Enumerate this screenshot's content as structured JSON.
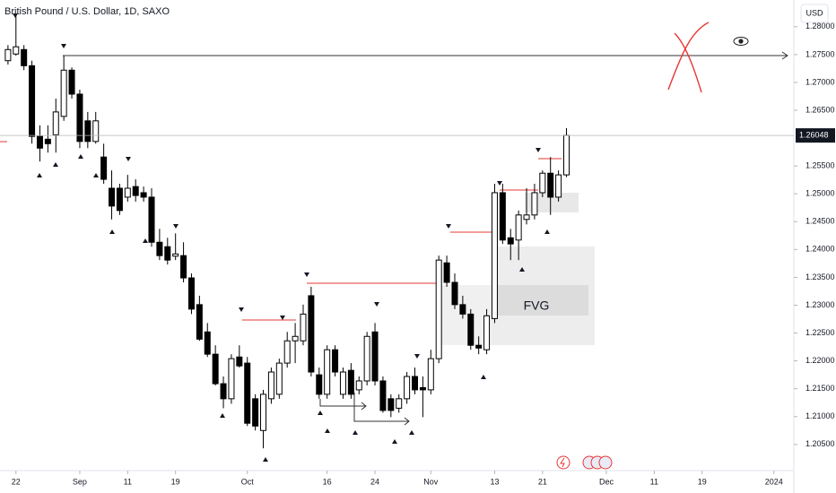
{
  "chart_data": {
    "type": "candlestick",
    "title": "British Pound / U.S. Dollar, 1D, SAXO",
    "currency": "USD",
    "annotation": "FVG",
    "up_color": "#ffffff",
    "down_color": "#000000",
    "open": [
      1.2739,
      1.2751,
      1.2759,
      1.273,
      1.2603,
      1.2598,
      1.2606,
      1.2639,
      1.2722,
      1.2679,
      1.2631,
      1.2594,
      1.2566,
      1.251,
      1.251,
      1.2494,
      1.2513,
      1.2502,
      1.2494,
      1.2413,
      1.2405,
      1.2388,
      1.2389,
      1.2349,
      1.2301,
      1.2252,
      1.2212,
      1.2159,
      1.2132,
      1.2207,
      1.2196,
      1.2132,
      1.2075,
      1.2132,
      1.214,
      1.2196,
      1.2236,
      1.2236,
      1.2317,
      1.2175,
      1.214,
      1.222,
      1.214,
      1.2183,
      1.2148,
      1.2164,
      1.2252,
      1.2164,
      1.2132,
      1.2115,
      1.2132,
      1.2172,
      1.2152,
      1.2148,
      1.2204,
      1.2376,
      1.2341,
      1.2301,
      1.2284,
      1.2228,
      1.222,
      1.2276,
      1.2502,
      1.2421,
      1.2417,
      1.2454,
      1.2462,
      1.2502,
      1.2537,
      1.2494,
      1.2534
    ],
    "high": [
      1.2767,
      1.2824,
      1.2767,
      1.2739,
      1.2623,
      1.2623,
      1.2671,
      1.2748,
      1.2727,
      1.2687,
      1.2647,
      1.2647,
      1.259,
      1.2542,
      1.2518,
      1.2534,
      1.2526,
      1.2513,
      1.251,
      1.2437,
      1.2421,
      1.2429,
      1.2413,
      1.2357,
      1.2317,
      1.2268,
      1.2228,
      1.2172,
      1.2212,
      1.2228,
      1.2207,
      1.214,
      1.2148,
      1.2188,
      1.2204,
      1.2252,
      1.2268,
      1.2301,
      1.2333,
      1.2188,
      1.2228,
      1.2228,
      1.2188,
      1.2196,
      1.2172,
      1.2252,
      1.2268,
      1.2172,
      1.214,
      1.214,
      1.218,
      1.2188,
      1.2172,
      1.222,
      1.2389,
      1.2389,
      1.2357,
      1.2317,
      1.2293,
      1.2244,
      1.2293,
      1.2518,
      1.2518,
      1.2437,
      1.247,
      1.251,
      1.2518,
      1.2542,
      1.2566,
      1.2542,
      1.2618
    ],
    "low": [
      1.2732,
      1.2748,
      1.2722,
      1.259,
      1.2558,
      1.2574,
      1.2574,
      1.2631,
      1.2671,
      1.2582,
      1.2582,
      1.259,
      1.2518,
      1.2454,
      1.2462,
      1.2486,
      1.2486,
      1.2486,
      1.2405,
      1.2381,
      1.2373,
      1.2381,
      1.2341,
      1.2284,
      1.2236,
      1.2207,
      1.2156,
      1.2115,
      1.2123,
      1.2188,
      1.2083,
      1.2075,
      1.2043,
      1.2123,
      1.2132,
      1.2188,
      1.2196,
      1.2228,
      1.2172,
      1.2132,
      1.2132,
      1.2172,
      1.2132,
      1.2132,
      1.214,
      1.2156,
      1.2156,
      1.2107,
      1.2099,
      1.2107,
      1.2123,
      1.214,
      1.2099,
      1.214,
      1.2196,
      1.2333,
      1.2293,
      1.2276,
      1.222,
      1.2212,
      1.2212,
      1.2268,
      1.241,
      1.2381,
      1.2381,
      1.2445,
      1.2454,
      1.2494,
      1.2462,
      1.2486,
      1.253
    ],
    "close": [
      1.2759,
      1.2764,
      1.273,
      1.2603,
      1.2582,
      1.259,
      1.2647,
      1.2722,
      1.2679,
      1.2594,
      1.2594,
      1.2631,
      1.2526,
      1.2478,
      1.247,
      1.251,
      1.2497,
      1.2494,
      1.2413,
      1.2389,
      1.2381,
      1.2392,
      1.2349,
      1.2293,
      1.2239,
      1.2212,
      1.2159,
      1.2132,
      1.2204,
      1.2191,
      1.2088,
      1.2083,
      1.214,
      1.218,
      1.2196,
      1.2236,
      1.2244,
      1.2284,
      1.218,
      1.214,
      1.222,
      1.218,
      1.218,
      1.214,
      1.2164,
      1.2244,
      1.2164,
      1.2111,
      1.2111,
      1.2132,
      1.2172,
      1.2148,
      1.2148,
      1.2204,
      1.2381,
      1.2341,
      1.2301,
      1.2284,
      1.2228,
      1.2223,
      1.2281,
      1.2502,
      1.2417,
      1.241,
      1.2462,
      1.2462,
      1.2502,
      1.2537,
      1.2494,
      1.2534,
      1.26048
    ],
    "last_price": 1.26048,
    "xlim": [
      -1,
      98.5
    ],
    "xticks": [
      {
        "value": 1,
        "label": "22"
      },
      {
        "value": 9,
        "label": "Sep"
      },
      {
        "value": 15,
        "label": "11"
      },
      {
        "value": 21,
        "label": "19"
      },
      {
        "value": 30,
        "label": "Oct"
      },
      {
        "value": 40,
        "label": "16"
      },
      {
        "value": 46,
        "label": "24"
      },
      {
        "value": 53,
        "label": "Nov"
      },
      {
        "value": 61,
        "label": "13"
      },
      {
        "value": 67,
        "label": "21"
      },
      {
        "value": 75,
        "label": "Dec"
      },
      {
        "value": 81,
        "label": "11"
      },
      {
        "value": 87,
        "label": "19"
      },
      {
        "value": 96,
        "label": "2024"
      }
    ],
    "ylim": [
      1.2003,
      1.2848
    ],
    "yticks": [
      {
        "value": 1.28,
        "label": "1.28000"
      },
      {
        "value": 1.275,
        "label": "1.27500"
      },
      {
        "value": 1.27,
        "label": "1.27000"
      },
      {
        "value": 1.265,
        "label": "1.26500"
      },
      {
        "value": 1.255,
        "label": "1.25500"
      },
      {
        "value": 1.25,
        "label": "1.25000"
      },
      {
        "value": 1.245,
        "label": "1.24500"
      },
      {
        "value": 1.24,
        "label": "1.24000"
      },
      {
        "value": 1.235,
        "label": "1.23500"
      },
      {
        "value": 1.23,
        "label": "1.23000"
      },
      {
        "value": 1.225,
        "label": "1.22500"
      },
      {
        "value": 1.22,
        "label": "1.22000"
      },
      {
        "value": 1.215,
        "label": "1.21500"
      },
      {
        "value": 1.21,
        "label": "1.21000"
      },
      {
        "value": 1.205,
        "label": "1.20500"
      }
    ]
  }
}
